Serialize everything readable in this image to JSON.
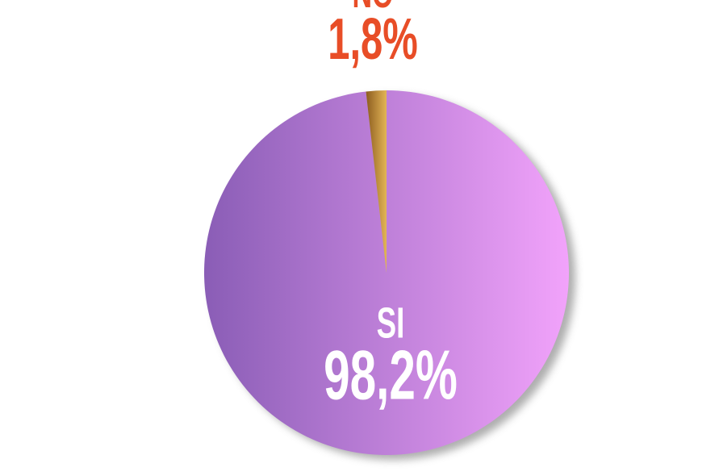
{
  "chart_data": {
    "type": "pie",
    "categories": [
      "SI",
      "NO"
    ],
    "values": [
      98.2,
      1.8
    ],
    "value_labels": [
      "98,2%",
      "1,8%"
    ],
    "colors": [
      [
        "#8a5db6",
        "#f2a3fb"
      ],
      [
        "#e3b556",
        "#8c5c1f"
      ]
    ],
    "label_colors": [
      "#ffffff",
      "#e84d27"
    ]
  }
}
